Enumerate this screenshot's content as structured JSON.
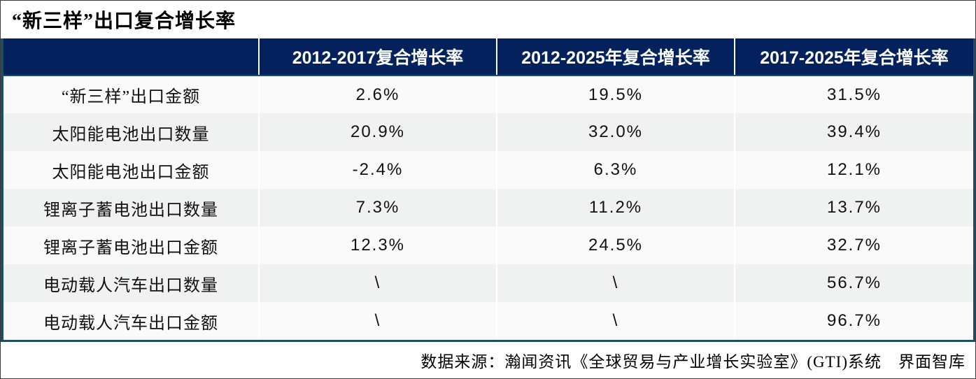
{
  "title": "“新三样”出口复合增长率",
  "table": {
    "columns": [
      "",
      "2012-2017复合增长率",
      "2012-2025年复合增长率",
      "2017-2025年复合增长率"
    ],
    "rows": [
      {
        "label": "“新三样”出口金额",
        "values": [
          "2.6%",
          "19.5%",
          "31.5%"
        ]
      },
      {
        "label": "太阳能电池出口数量",
        "values": [
          "20.9%",
          "32.0%",
          "39.4%"
        ]
      },
      {
        "label": "太阳能电池出口金额",
        "values": [
          "-2.4%",
          "6.3%",
          "12.1%"
        ]
      },
      {
        "label": "锂离子蓄电池出口数量",
        "values": [
          "7.3%",
          "11.2%",
          "13.7%"
        ]
      },
      {
        "label": "锂离子蓄电池出口金额",
        "values": [
          "12.3%",
          "24.5%",
          "32.7%"
        ]
      },
      {
        "label": "电动载人汽车出口数量",
        "values": [
          "\\",
          "\\",
          "56.7%"
        ]
      },
      {
        "label": "电动载人汽车出口金额",
        "values": [
          "\\",
          "\\",
          "96.7%"
        ]
      }
    ]
  },
  "footer": {
    "source": "数据来源：瀚闻资讯《全球贸易与产业增长实验室》(GTI)系统　界面智库"
  },
  "colors": {
    "header_bg": "#03215c",
    "header_text": "#ffffff",
    "row_light": "#fafafa",
    "row_striped": "#f0f1f1",
    "table_border": "#1d4e66",
    "body_text": "#111111"
  },
  "chart_data": {
    "type": "table",
    "title": "“新三样”出口复合增长率",
    "row_labels": [
      "“新三样”出口金额",
      "太阳能电池出口数量",
      "太阳能电池出口金额",
      "锂离子蓄电池出口数量",
      "锂离子蓄电池出口金额",
      "电动载人汽车出口数量",
      "电动载人汽车出口金额"
    ],
    "columns": [
      "2012-2017复合增长率",
      "2012-2025年复合增长率",
      "2017-2025年复合增长率"
    ],
    "series": [
      {
        "name": "2012-2017复合增长率",
        "values": [
          2.6,
          20.9,
          -2.4,
          7.3,
          12.3,
          null,
          null
        ]
      },
      {
        "name": "2012-2025年复合增长率",
        "values": [
          19.5,
          32.0,
          6.3,
          11.2,
          24.5,
          null,
          null
        ]
      },
      {
        "name": "2017-2025年复合增长率",
        "values": [
          31.5,
          39.4,
          12.1,
          13.7,
          32.7,
          56.7,
          96.7
        ]
      }
    ],
    "unit": "%",
    "missing_marker": "\\",
    "source": "数据来源：瀚闻资讯《全球贸易与产业增长实验室》(GTI)系统　界面智库"
  }
}
